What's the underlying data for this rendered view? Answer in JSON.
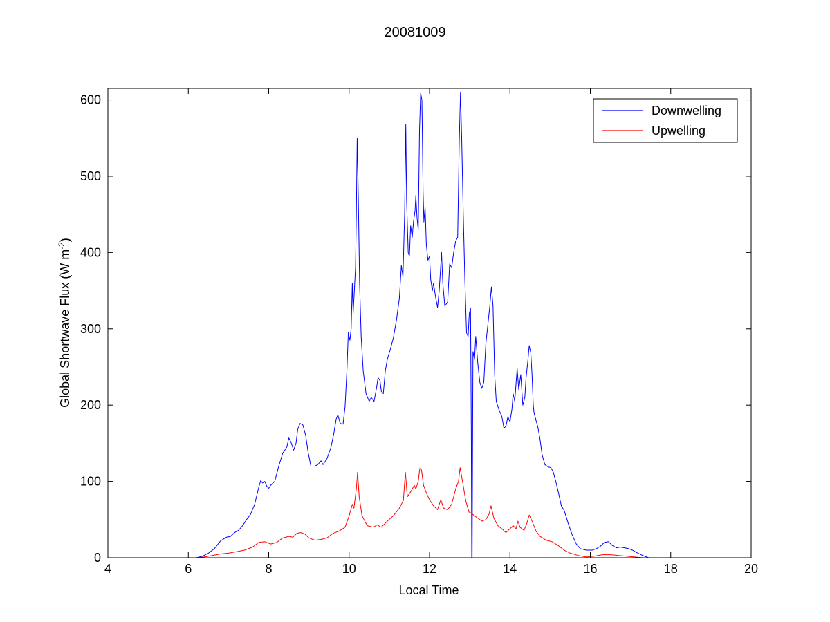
{
  "chart_data": {
    "type": "line",
    "title": "20081009",
    "xlabel": "Local Time",
    "ylabel_main": "Global Shortwave Flux (W m",
    "ylabel_sup": "-2",
    "ylabel_close": ")",
    "xlim": [
      4,
      20
    ],
    "ylim": [
      0,
      615
    ],
    "xticks": [
      4,
      6,
      8,
      10,
      12,
      14,
      16,
      18,
      20
    ],
    "yticks": [
      0,
      100,
      200,
      300,
      400,
      500,
      600
    ],
    "grid": false,
    "legend_position": "top-right",
    "series": [
      {
        "name": "Downwelling",
        "color": "#0000ff",
        "points": [
          [
            5.0,
            0
          ],
          [
            5.5,
            0
          ],
          [
            6.0,
            0
          ],
          [
            6.2,
            0
          ],
          [
            6.35,
            2
          ],
          [
            6.5,
            6
          ],
          [
            6.65,
            12
          ],
          [
            6.8,
            22
          ],
          [
            6.95,
            27
          ],
          [
            7.05,
            28
          ],
          [
            7.15,
            33
          ],
          [
            7.25,
            36
          ],
          [
            7.35,
            42
          ],
          [
            7.45,
            50
          ],
          [
            7.55,
            57
          ],
          [
            7.65,
            70
          ],
          [
            7.75,
            92
          ],
          [
            7.8,
            101
          ],
          [
            7.85,
            98
          ],
          [
            7.9,
            100
          ],
          [
            7.95,
            94
          ],
          [
            8.0,
            91
          ],
          [
            8.05,
            95
          ],
          [
            8.15,
            100
          ],
          [
            8.25,
            120
          ],
          [
            8.35,
            137
          ],
          [
            8.45,
            145
          ],
          [
            8.5,
            157
          ],
          [
            8.55,
            152
          ],
          [
            8.62,
            141
          ],
          [
            8.68,
            150
          ],
          [
            8.72,
            168
          ],
          [
            8.78,
            176
          ],
          [
            8.85,
            174
          ],
          [
            8.92,
            160
          ],
          [
            8.98,
            138
          ],
          [
            9.05,
            120
          ],
          [
            9.15,
            120
          ],
          [
            9.22,
            122
          ],
          [
            9.3,
            127
          ],
          [
            9.35,
            122
          ],
          [
            9.45,
            130
          ],
          [
            9.55,
            145
          ],
          [
            9.62,
            163
          ],
          [
            9.68,
            182
          ],
          [
            9.72,
            187
          ],
          [
            9.78,
            176
          ],
          [
            9.85,
            175
          ],
          [
            9.9,
            198
          ],
          [
            9.95,
            250
          ],
          [
            9.98,
            295
          ],
          [
            10.02,
            285
          ],
          [
            10.05,
            300
          ],
          [
            10.08,
            360
          ],
          [
            10.1,
            320
          ],
          [
            10.13,
            350
          ],
          [
            10.16,
            380
          ],
          [
            10.18,
            450
          ],
          [
            10.2,
            550
          ],
          [
            10.23,
            470
          ],
          [
            10.26,
            360
          ],
          [
            10.3,
            290
          ],
          [
            10.35,
            245
          ],
          [
            10.42,
            215
          ],
          [
            10.5,
            205
          ],
          [
            10.55,
            210
          ],
          [
            10.62,
            205
          ],
          [
            10.68,
            222
          ],
          [
            10.72,
            236
          ],
          [
            10.77,
            232
          ],
          [
            10.8,
            218
          ],
          [
            10.85,
            215
          ],
          [
            10.9,
            245
          ],
          [
            10.95,
            260
          ],
          [
            11.02,
            272
          ],
          [
            11.1,
            288
          ],
          [
            11.18,
            312
          ],
          [
            11.25,
            340
          ],
          [
            11.3,
            383
          ],
          [
            11.34,
            368
          ],
          [
            11.38,
            450
          ],
          [
            11.41,
            568
          ],
          [
            11.43,
            468
          ],
          [
            11.47,
            400
          ],
          [
            11.5,
            395
          ],
          [
            11.53,
            435
          ],
          [
            11.57,
            420
          ],
          [
            11.6,
            440
          ],
          [
            11.64,
            455
          ],
          [
            11.66,
            475
          ],
          [
            11.69,
            445
          ],
          [
            11.72,
            430
          ],
          [
            11.75,
            560
          ],
          [
            11.78,
            609
          ],
          [
            11.81,
            600
          ],
          [
            11.84,
            480
          ],
          [
            11.86,
            440
          ],
          [
            11.89,
            460
          ],
          [
            11.92,
            410
          ],
          [
            11.96,
            390
          ],
          [
            12.0,
            395
          ],
          [
            12.03,
            365
          ],
          [
            12.07,
            350
          ],
          [
            12.1,
            360
          ],
          [
            12.15,
            342
          ],
          [
            12.2,
            328
          ],
          [
            12.24,
            350
          ],
          [
            12.3,
            400
          ],
          [
            12.33,
            360
          ],
          [
            12.38,
            330
          ],
          [
            12.45,
            335
          ],
          [
            12.5,
            385
          ],
          [
            12.55,
            380
          ],
          [
            12.6,
            400
          ],
          [
            12.65,
            415
          ],
          [
            12.7,
            420
          ],
          [
            12.74,
            545
          ],
          [
            12.77,
            610
          ],
          [
            12.8,
            550
          ],
          [
            12.84,
            450
          ],
          [
            12.88,
            360
          ],
          [
            12.92,
            295
          ],
          [
            12.96,
            290
          ],
          [
            12.99,
            320
          ],
          [
            13.02,
            327
          ],
          [
            13.04,
            165
          ],
          [
            13.05,
            0
          ],
          [
            13.06,
            0
          ],
          [
            13.08,
            270
          ],
          [
            13.12,
            260
          ],
          [
            13.15,
            290
          ],
          [
            13.2,
            255
          ],
          [
            13.25,
            230
          ],
          [
            13.3,
            222
          ],
          [
            13.35,
            230
          ],
          [
            13.4,
            280
          ],
          [
            13.45,
            305
          ],
          [
            13.5,
            330
          ],
          [
            13.54,
            355
          ],
          [
            13.58,
            330
          ],
          [
            13.62,
            240
          ],
          [
            13.66,
            205
          ],
          [
            13.72,
            195
          ],
          [
            13.8,
            185
          ],
          [
            13.85,
            170
          ],
          [
            13.9,
            172
          ],
          [
            13.95,
            185
          ],
          [
            14.0,
            178
          ],
          [
            14.05,
            195
          ],
          [
            14.08,
            215
          ],
          [
            14.12,
            205
          ],
          [
            14.18,
            248
          ],
          [
            14.22,
            220
          ],
          [
            14.27,
            240
          ],
          [
            14.32,
            200
          ],
          [
            14.37,
            210
          ],
          [
            14.4,
            235
          ],
          [
            14.45,
            260
          ],
          [
            14.48,
            278
          ],
          [
            14.52,
            268
          ],
          [
            14.55,
            240
          ],
          [
            14.58,
            200
          ],
          [
            14.6,
            190
          ],
          [
            14.65,
            180
          ],
          [
            14.7,
            170
          ],
          [
            14.75,
            155
          ],
          [
            14.8,
            135
          ],
          [
            14.87,
            122
          ],
          [
            14.95,
            119
          ],
          [
            15.02,
            118
          ],
          [
            15.08,
            112
          ],
          [
            15.15,
            98
          ],
          [
            15.22,
            82
          ],
          [
            15.28,
            68
          ],
          [
            15.35,
            62
          ],
          [
            15.45,
            45
          ],
          [
            15.55,
            30
          ],
          [
            15.65,
            18
          ],
          [
            15.75,
            12
          ],
          [
            15.9,
            10
          ],
          [
            16.05,
            10
          ],
          [
            16.15,
            12
          ],
          [
            16.25,
            15
          ],
          [
            16.35,
            20
          ],
          [
            16.45,
            21
          ],
          [
            16.55,
            16
          ],
          [
            16.65,
            13
          ],
          [
            16.75,
            14
          ],
          [
            16.85,
            13
          ],
          [
            16.95,
            12
          ],
          [
            17.05,
            10
          ],
          [
            17.15,
            7
          ],
          [
            17.3,
            3
          ],
          [
            17.45,
            0
          ],
          [
            17.55,
            0
          ]
        ]
      },
      {
        "name": "Upwelling",
        "color": "#ff0000",
        "points": [
          [
            5.0,
            0
          ],
          [
            5.5,
            0
          ],
          [
            6.0,
            0
          ],
          [
            6.2,
            0
          ],
          [
            6.4,
            1
          ],
          [
            6.6,
            3
          ],
          [
            6.8,
            5
          ],
          [
            7.0,
            6
          ],
          [
            7.2,
            8
          ],
          [
            7.4,
            10
          ],
          [
            7.6,
            14
          ],
          [
            7.75,
            20
          ],
          [
            7.9,
            21
          ],
          [
            8.05,
            18
          ],
          [
            8.2,
            20
          ],
          [
            8.35,
            26
          ],
          [
            8.5,
            28
          ],
          [
            8.6,
            27
          ],
          [
            8.7,
            32
          ],
          [
            8.8,
            33
          ],
          [
            8.9,
            31
          ],
          [
            9.0,
            26
          ],
          [
            9.15,
            23
          ],
          [
            9.3,
            24
          ],
          [
            9.45,
            26
          ],
          [
            9.6,
            32
          ],
          [
            9.75,
            35
          ],
          [
            9.9,
            40
          ],
          [
            10.0,
            55
          ],
          [
            10.08,
            70
          ],
          [
            10.12,
            65
          ],
          [
            10.18,
            90
          ],
          [
            10.21,
            112
          ],
          [
            10.25,
            80
          ],
          [
            10.32,
            55
          ],
          [
            10.45,
            42
          ],
          [
            10.6,
            40
          ],
          [
            10.7,
            43
          ],
          [
            10.8,
            40
          ],
          [
            10.95,
            48
          ],
          [
            11.1,
            55
          ],
          [
            11.25,
            65
          ],
          [
            11.35,
            75
          ],
          [
            11.4,
            112
          ],
          [
            11.45,
            80
          ],
          [
            11.55,
            88
          ],
          [
            11.62,
            95
          ],
          [
            11.66,
            90
          ],
          [
            11.72,
            100
          ],
          [
            11.76,
            117
          ],
          [
            11.8,
            115
          ],
          [
            11.85,
            95
          ],
          [
            11.92,
            85
          ],
          [
            12.0,
            76
          ],
          [
            12.1,
            68
          ],
          [
            12.2,
            63
          ],
          [
            12.28,
            76
          ],
          [
            12.35,
            65
          ],
          [
            12.45,
            63
          ],
          [
            12.55,
            70
          ],
          [
            12.65,
            90
          ],
          [
            12.72,
            100
          ],
          [
            12.76,
            118
          ],
          [
            12.82,
            100
          ],
          [
            12.9,
            75
          ],
          [
            12.98,
            60
          ],
          [
            13.05,
            58
          ],
          [
            13.12,
            55
          ],
          [
            13.2,
            52
          ],
          [
            13.3,
            48
          ],
          [
            13.4,
            50
          ],
          [
            13.48,
            57
          ],
          [
            13.53,
            68
          ],
          [
            13.6,
            52
          ],
          [
            13.7,
            42
          ],
          [
            13.8,
            38
          ],
          [
            13.9,
            33
          ],
          [
            14.0,
            38
          ],
          [
            14.08,
            42
          ],
          [
            14.15,
            38
          ],
          [
            14.2,
            48
          ],
          [
            14.25,
            40
          ],
          [
            14.35,
            36
          ],
          [
            14.42,
            45
          ],
          [
            14.48,
            56
          ],
          [
            14.55,
            48
          ],
          [
            14.65,
            35
          ],
          [
            14.75,
            28
          ],
          [
            14.9,
            23
          ],
          [
            15.05,
            21
          ],
          [
            15.2,
            16
          ],
          [
            15.35,
            10
          ],
          [
            15.5,
            6
          ],
          [
            15.7,
            3
          ],
          [
            15.9,
            1
          ],
          [
            16.1,
            2
          ],
          [
            16.3,
            4
          ],
          [
            16.5,
            4
          ],
          [
            16.7,
            3
          ],
          [
            16.9,
            2
          ],
          [
            17.1,
            1
          ],
          [
            17.3,
            0
          ],
          [
            17.5,
            0
          ]
        ]
      }
    ]
  }
}
